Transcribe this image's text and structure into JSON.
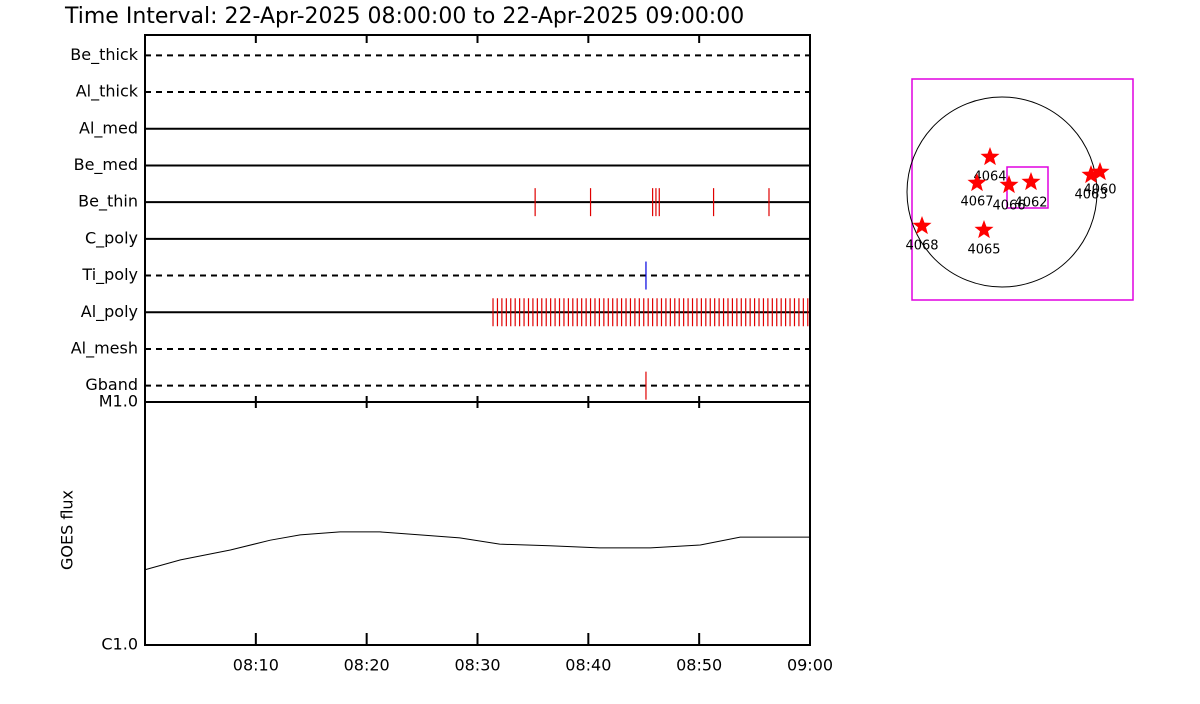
{
  "chart_data": [
    {
      "type": "timeline",
      "title": "Time Interval: 22-Apr-2025 08:00:00 to 22-Apr-2025 09:00:00",
      "xlim": [
        0,
        60
      ],
      "filters": [
        {
          "name": "Be_thick",
          "line": "dashed",
          "color": "#e00000",
          "events": []
        },
        {
          "name": "Al_thick",
          "line": "dashed",
          "color": "#e00000",
          "events": []
        },
        {
          "name": "Al_med",
          "line": "solid",
          "color": "#e00000",
          "events": []
        },
        {
          "name": "Be_med",
          "line": "solid",
          "color": "#e00000",
          "events": []
        },
        {
          "name": "Be_thin",
          "line": "solid",
          "color": "#e00000",
          "events": [
            35.2,
            40.2,
            45.8,
            46.1,
            46.4,
            51.3,
            56.3
          ]
        },
        {
          "name": "C_poly",
          "line": "solid",
          "color": "#e00000",
          "events": []
        },
        {
          "name": "Ti_poly",
          "line": "dashed",
          "color": "#0000e0",
          "events": [
            45.2
          ]
        },
        {
          "name": "Al_poly",
          "line": "solid",
          "color": "#e00000",
          "events": [
            31.4,
            31.8,
            32.2,
            32.6,
            33.0,
            33.4,
            33.8,
            34.2,
            34.6,
            35.0,
            35.4,
            35.8,
            36.2,
            36.6,
            37.0,
            37.4,
            37.8,
            38.2,
            38.6,
            39.0,
            39.4,
            39.8,
            40.2,
            40.6,
            41.0,
            41.4,
            41.8,
            42.2,
            42.6,
            43.0,
            43.4,
            43.8,
            44.2,
            44.6,
            45.0,
            45.4,
            45.8,
            46.2,
            46.6,
            47.0,
            47.4,
            47.8,
            48.2,
            48.6,
            49.0,
            49.4,
            49.8,
            50.2,
            50.6,
            51.0,
            51.4,
            51.8,
            52.2,
            52.6,
            53.0,
            53.4,
            53.8,
            54.2,
            54.6,
            55.0,
            55.4,
            55.8,
            56.2,
            56.6,
            57.0,
            57.4,
            57.8,
            58.2,
            58.6,
            59.0,
            59.4,
            59.8
          ]
        },
        {
          "name": "Al_mesh",
          "line": "dashed",
          "color": "#e00000",
          "events": []
        },
        {
          "name": "Gband",
          "line": "dashed",
          "color": "#e00000",
          "events": [
            45.2
          ]
        }
      ]
    },
    {
      "type": "line",
      "y_label": "GOES flux",
      "log_scale": true,
      "color": "#000000",
      "xlim": [
        0,
        60
      ],
      "xticks": [
        {
          "value": 10,
          "label": "08:10"
        },
        {
          "value": 20,
          "label": "08:20"
        },
        {
          "value": 30,
          "label": "08:30"
        },
        {
          "value": 40,
          "label": "08:40"
        },
        {
          "value": 50,
          "label": "08:50"
        },
        {
          "value": 60,
          "label": "09:00"
        }
      ],
      "ylim": [
        1e-06,
        1e-05
      ],
      "yticks": [
        {
          "value": 1e-06,
          "label": "C1.0"
        },
        {
          "value": 1e-05,
          "label": "M1.0"
        }
      ],
      "x": [
        0,
        3.2,
        7.7,
        11.3,
        14,
        17.6,
        21.2,
        24.8,
        28.4,
        32,
        36.5,
        41,
        45.6,
        50.1,
        53.7,
        60
      ],
      "values": [
        2.04e-06,
        2.24e-06,
        2.46e-06,
        2.7e-06,
        2.84e-06,
        2.92e-06,
        2.92e-06,
        2.84e-06,
        2.76e-06,
        2.6e-06,
        2.56e-06,
        2.51e-06,
        2.51e-06,
        2.58e-06,
        2.78e-06,
        2.78e-06
      ]
    }
  ],
  "map": {
    "regions": [
      "4064",
      "4067",
      "4066",
      "4062",
      "4063",
      "4060",
      "4068",
      "4065"
    ]
  }
}
